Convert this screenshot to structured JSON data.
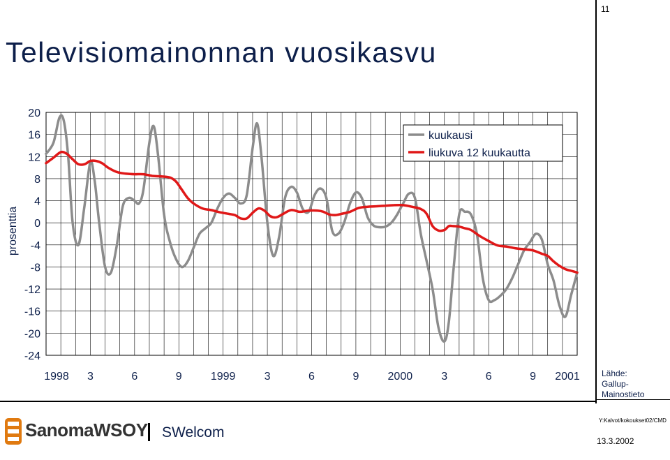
{
  "page_number": "11",
  "title": "Televisiomainonnan vuosikasvu",
  "y_axis_label": "prosenttia",
  "source": {
    "line1": "Lähde:",
    "line2": "Gallup-Mainostieto"
  },
  "file_path": "Y:Kalvot/kokoukset02/CMD",
  "date": "13.3.2002",
  "footer": {
    "brand": "SanomaWSOY",
    "brand2": "SWelcom"
  },
  "colors": {
    "monthly": "#8c8c8c",
    "moving": "#e01818",
    "logo": "#e07a10"
  },
  "chart_data": {
    "type": "line",
    "title": "Televisiomainonnan vuosikasvu",
    "ylabel": "prosenttia",
    "ylim": [
      -24,
      20
    ],
    "yticks": [
      20,
      16,
      12,
      8,
      4,
      0,
      -4,
      -8,
      -12,
      -16,
      -20,
      -24
    ],
    "xlim": [
      0,
      36
    ],
    "xticks": [
      {
        "x": 0,
        "label": "1998"
      },
      {
        "x": 3,
        "label": "3"
      },
      {
        "x": 6,
        "label": "6"
      },
      {
        "x": 9,
        "label": "9"
      },
      {
        "x": 12,
        "label": "1999"
      },
      {
        "x": 15,
        "label": "3"
      },
      {
        "x": 18,
        "label": "6"
      },
      {
        "x": 21,
        "label": "9"
      },
      {
        "x": 24,
        "label": "2000"
      },
      {
        "x": 27,
        "label": "3"
      },
      {
        "x": 30,
        "label": "6"
      },
      {
        "x": 33,
        "label": "9"
      },
      {
        "x": 36,
        "label": "2001"
      }
    ],
    "grid": true,
    "legend_position": "top-right",
    "series": [
      {
        "name": "kuukausi",
        "x": [
          0,
          0.5,
          0.9,
          1.2,
          1.5,
          1.8,
          2.2,
          2.6,
          3.0,
          3.3,
          3.6,
          4.0,
          4.4,
          4.8,
          5.2,
          5.6,
          6.0,
          6.3,
          6.6,
          7.0,
          7.3,
          7.6,
          8.0,
          8.4,
          8.8,
          9.2,
          9.6,
          10.0,
          10.4,
          10.8,
          11.2,
          11.6,
          12.0,
          12.4,
          12.8,
          13.2,
          13.6,
          14.0,
          14.3,
          14.6,
          15.0,
          15.4,
          15.8,
          16.2,
          16.6,
          17.0,
          17.4,
          17.8,
          18.2,
          18.6,
          19.0,
          19.4,
          19.8,
          20.2,
          20.6,
          21.0,
          21.4,
          21.8,
          22.2,
          22.6,
          23.0,
          23.4,
          23.8,
          24.2,
          24.6,
          25.0,
          25.4,
          25.8,
          26.2,
          26.6,
          27.0,
          27.3,
          27.6,
          28.0,
          28.4,
          28.8,
          29.2,
          29.6,
          30.0,
          30.4,
          30.8,
          31.2,
          31.6,
          32.0,
          32.4,
          32.8,
          33.2,
          33.6,
          34.0,
          34.4,
          34.8,
          35.2,
          35.6,
          36.0
        ],
        "values": [
          12.5,
          14.5,
          19,
          18.5,
          12,
          0,
          -4,
          3,
          11,
          7.5,
          0,
          -8,
          -9,
          -4,
          3,
          4.5,
          4,
          3.5,
          6,
          14.5,
          17.5,
          12,
          1.5,
          -3.5,
          -6.5,
          -8,
          -7,
          -4.5,
          -2,
          -1,
          0,
          2.5,
          4.5,
          5.3,
          4.5,
          3.5,
          5,
          13.5,
          18,
          12,
          0,
          -6,
          -2.5,
          4.5,
          6.5,
          5.5,
          2.5,
          2,
          5,
          6.2,
          4.5,
          -1.5,
          -2,
          0,
          3.5,
          5.5,
          4.5,
          1,
          -0.5,
          -0.8,
          -0.7,
          0,
          1.5,
          3.5,
          5.3,
          4.5,
          -2,
          -7,
          -12,
          -19,
          -21.5,
          -18,
          -9,
          1.5,
          2,
          1.5,
          -2,
          -10,
          -14,
          -14,
          -13.2,
          -12,
          -10,
          -7.5,
          -5,
          -3.5,
          -2,
          -3,
          -7.5,
          -10.5,
          -15,
          -17,
          -13,
          -9
        ]
      },
      {
        "name": "liukuva 12 kuukautta",
        "x": [
          0,
          0.5,
          1.0,
          1.4,
          1.8,
          2.2,
          2.6,
          3.0,
          3.4,
          3.8,
          4.2,
          4.8,
          5.4,
          6.0,
          6.6,
          7.2,
          7.8,
          8.4,
          8.8,
          9.2,
          9.6,
          10.0,
          10.6,
          11.2,
          11.8,
          12.4,
          12.8,
          13.2,
          13.6,
          14.0,
          14.4,
          14.8,
          15.2,
          15.6,
          16.0,
          16.6,
          17.2,
          17.8,
          18.4,
          18.8,
          19.2,
          19.6,
          20.0,
          20.6,
          21.2,
          21.8,
          22.4,
          23.0,
          23.6,
          24.2,
          24.8,
          25.4,
          25.8,
          26.2,
          26.6,
          27.0,
          27.3,
          27.6,
          28.0,
          28.4,
          28.8,
          29.4,
          30.0,
          30.6,
          31.2,
          31.8,
          32.4,
          33.0,
          33.6,
          34.0,
          34.4,
          34.8,
          35.2,
          35.6,
          36.0
        ],
        "values": [
          10.8,
          11.8,
          12.8,
          12.5,
          11.5,
          10.6,
          10.6,
          11.2,
          11.2,
          10.8,
          10.0,
          9.2,
          8.9,
          8.8,
          8.8,
          8.5,
          8.4,
          8.2,
          7.5,
          6.0,
          4.5,
          3.5,
          2.6,
          2.3,
          1.9,
          1.6,
          1.4,
          0.8,
          0.8,
          1.8,
          2.6,
          2.2,
          1.2,
          1.0,
          1.5,
          2.3,
          2.0,
          2.2,
          2.2,
          2.0,
          1.5,
          1.4,
          1.6,
          2.0,
          2.7,
          2.9,
          3.0,
          3.1,
          3.2,
          3.2,
          2.9,
          2.5,
          1.6,
          -0.6,
          -1.4,
          -1.3,
          -0.6,
          -0.6,
          -0.7,
          -1.0,
          -1.3,
          -2.4,
          -3.3,
          -4.1,
          -4.3,
          -4.6,
          -4.8,
          -5.0,
          -5.6,
          -6.0,
          -7.0,
          -7.8,
          -8.4,
          -8.7,
          -9.0
        ]
      }
    ]
  }
}
